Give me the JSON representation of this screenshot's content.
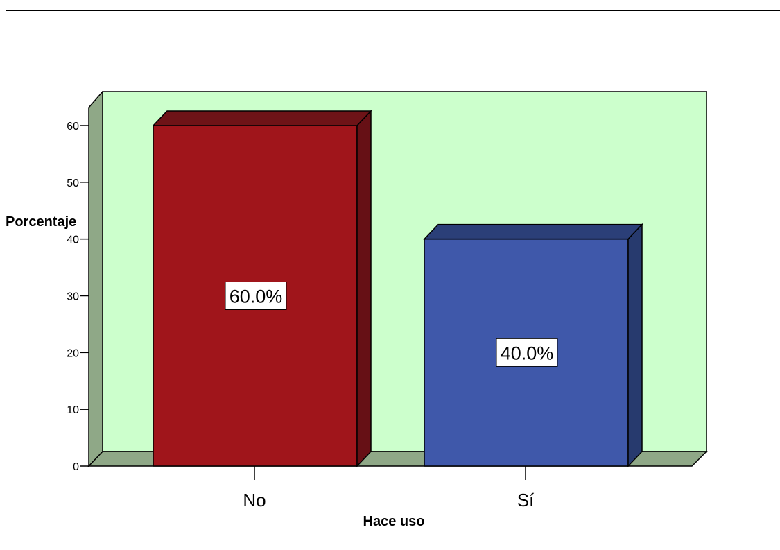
{
  "chart_data": {
    "type": "bar",
    "style": "3d",
    "categories": [
      "No",
      "Sí"
    ],
    "values": [
      60,
      40
    ],
    "data_labels": [
      "60.0%",
      "40.0%"
    ],
    "xlabel": "Hace uso",
    "ylabel": "Porcentaje",
    "yticks": [
      0,
      10,
      20,
      30,
      40,
      50,
      60
    ],
    "ylim": [
      0,
      60
    ],
    "grid": false,
    "legend": "none",
    "colors": {
      "bars": [
        "#a0151b",
        "#3f58aa"
      ],
      "bar_sides": [
        "#661015",
        "#273a6e"
      ],
      "bar_tops": [
        "#6e1317",
        "#2b3f78"
      ],
      "plot_background": "#ccffcc",
      "walls": "#8fa887"
    }
  }
}
